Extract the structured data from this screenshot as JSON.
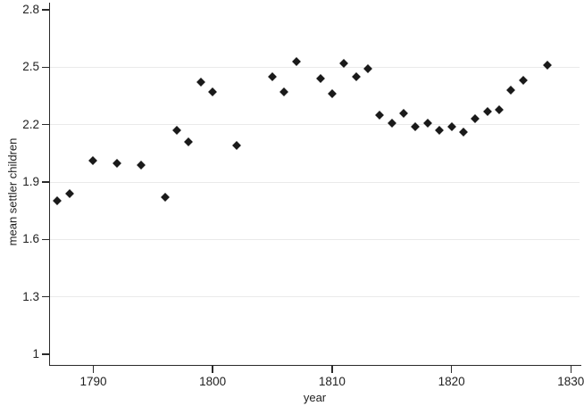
{
  "chart_data": {
    "type": "scatter",
    "title": "",
    "xlabel": "year",
    "ylabel": "mean settler children",
    "xlim": [
      1786.3,
      1830.8
    ],
    "ylim": [
      1,
      2.8
    ],
    "x_tick_values": [
      1790,
      1800,
      1810,
      1820,
      1830
    ],
    "x_tick_labels": [
      "1790",
      "1800",
      "1810",
      "1820",
      "1830"
    ],
    "y_tick_values": [
      1,
      1.3,
      1.6,
      1.9,
      2.2,
      2.5,
      2.8
    ],
    "y_tick_labels": [
      "1",
      "1.3",
      "1.6",
      "1.9",
      "2.2",
      "2.5",
      "2.8"
    ],
    "grid_y_values": [
      1.3,
      1.6,
      1.9,
      2.2,
      2.5
    ],
    "grid_on": true,
    "legend_position": "none",
    "marker_shape": "diamond",
    "marker_color": "#1a1a1a",
    "grid_color": "#eaeaea",
    "axis_color": "#2a2a2a",
    "background_color": "#ffffff",
    "points": [
      {
        "x": 1787,
        "y": 1.8
      },
      {
        "x": 1788,
        "y": 1.84
      },
      {
        "x": 1790,
        "y": 2.01
      },
      {
        "x": 1792,
        "y": 2.0
      },
      {
        "x": 1794,
        "y": 1.99
      },
      {
        "x": 1796,
        "y": 1.82
      },
      {
        "x": 1797,
        "y": 2.17
      },
      {
        "x": 1798,
        "y": 2.11
      },
      {
        "x": 1799,
        "y": 2.42
      },
      {
        "x": 1800,
        "y": 2.37
      },
      {
        "x": 1802,
        "y": 2.09
      },
      {
        "x": 1805,
        "y": 2.45
      },
      {
        "x": 1806,
        "y": 2.37
      },
      {
        "x": 1807,
        "y": 2.53
      },
      {
        "x": 1809,
        "y": 2.44
      },
      {
        "x": 1810,
        "y": 2.36
      },
      {
        "x": 1811,
        "y": 2.52
      },
      {
        "x": 1812,
        "y": 2.45
      },
      {
        "x": 1813,
        "y": 2.49
      },
      {
        "x": 1814,
        "y": 2.25
      },
      {
        "x": 1815,
        "y": 2.21
      },
      {
        "x": 1816,
        "y": 2.26
      },
      {
        "x": 1817,
        "y": 2.19
      },
      {
        "x": 1818,
        "y": 2.21
      },
      {
        "x": 1819,
        "y": 2.17
      },
      {
        "x": 1820,
        "y": 2.19
      },
      {
        "x": 1821,
        "y": 2.16
      },
      {
        "x": 1822,
        "y": 2.23
      },
      {
        "x": 1823,
        "y": 2.27
      },
      {
        "x": 1824,
        "y": 2.28
      },
      {
        "x": 1825,
        "y": 2.38
      },
      {
        "x": 1826,
        "y": 2.43
      },
      {
        "x": 1828,
        "y": 2.51
      }
    ]
  }
}
